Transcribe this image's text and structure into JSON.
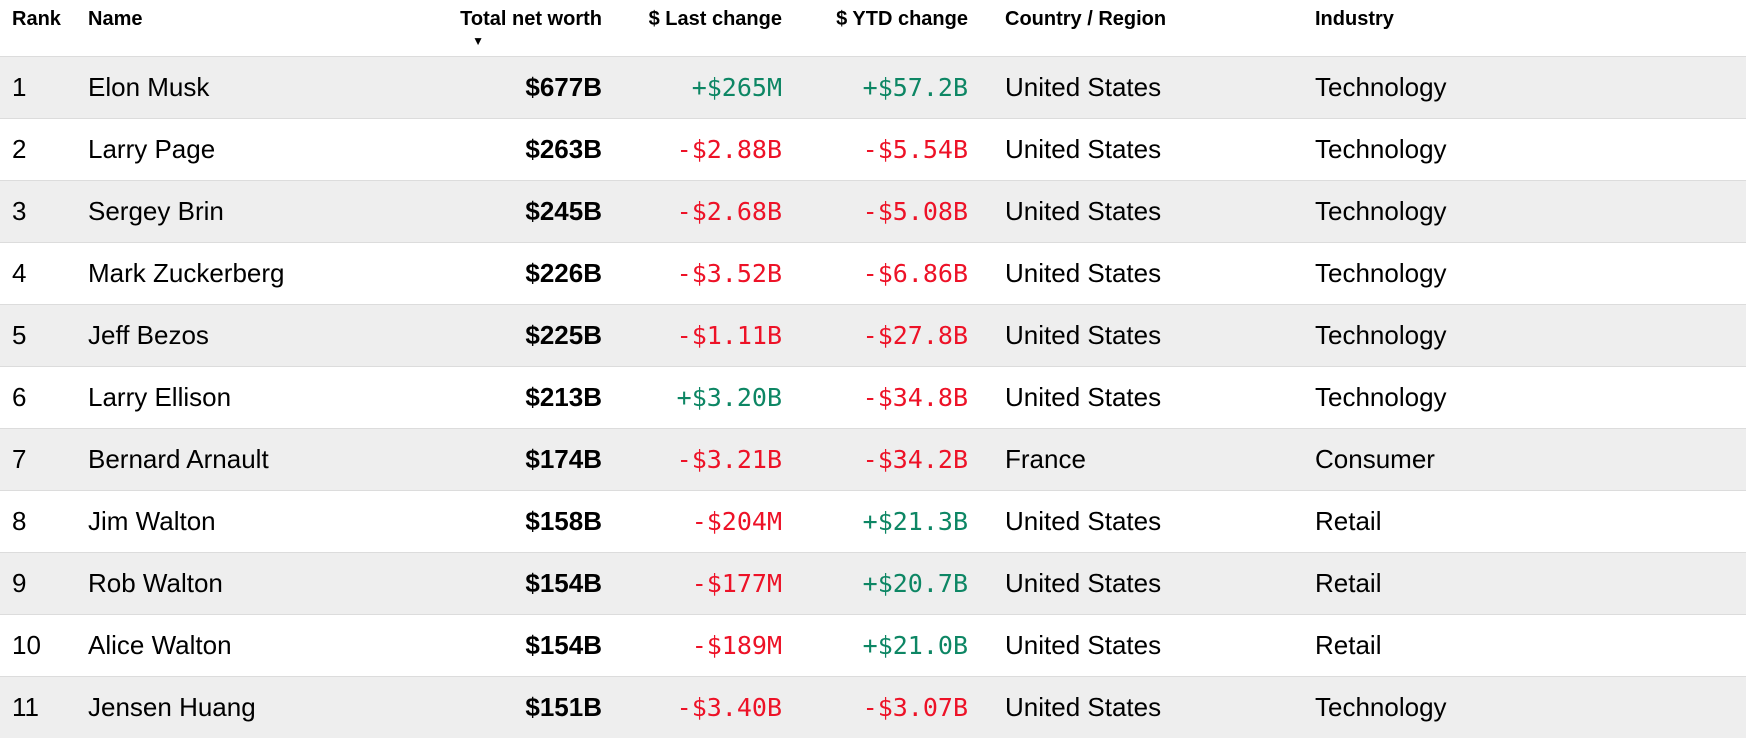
{
  "table": {
    "headers": {
      "rank": "Rank",
      "name": "Name",
      "net_worth": "Total net worth",
      "last_change": "$ Last change",
      "ytd_change": "$ YTD change",
      "country": "Country / Region",
      "industry": "Industry"
    },
    "sort": {
      "column": "Total net worth",
      "direction": "descending",
      "icon": "▼"
    },
    "colors": {
      "positive": "#0d8664",
      "negative": "#ed1227",
      "row_stripe": "#eeeeee",
      "row_separator": "#dcdcdc"
    },
    "rows": [
      {
        "rank": "1",
        "name": "Elon Musk",
        "net_worth": "$677B",
        "last_change": "+$265M",
        "ytd_change": "+$57.2B",
        "country": "United States",
        "industry": "Technology"
      },
      {
        "rank": "2",
        "name": "Larry Page",
        "net_worth": "$263B",
        "last_change": "-$2.88B",
        "ytd_change": "-$5.54B",
        "country": "United States",
        "industry": "Technology"
      },
      {
        "rank": "3",
        "name": "Sergey Brin",
        "net_worth": "$245B",
        "last_change": "-$2.68B",
        "ytd_change": "-$5.08B",
        "country": "United States",
        "industry": "Technology"
      },
      {
        "rank": "4",
        "name": "Mark Zuckerberg",
        "net_worth": "$226B",
        "last_change": "-$3.52B",
        "ytd_change": "-$6.86B",
        "country": "United States",
        "industry": "Technology"
      },
      {
        "rank": "5",
        "name": "Jeff Bezos",
        "net_worth": "$225B",
        "last_change": "-$1.11B",
        "ytd_change": "-$27.8B",
        "country": "United States",
        "industry": "Technology"
      },
      {
        "rank": "6",
        "name": "Larry Ellison",
        "net_worth": "$213B",
        "last_change": "+$3.20B",
        "ytd_change": "-$34.8B",
        "country": "United States",
        "industry": "Technology"
      },
      {
        "rank": "7",
        "name": "Bernard Arnault",
        "net_worth": "$174B",
        "last_change": "-$3.21B",
        "ytd_change": "-$34.2B",
        "country": "France",
        "industry": "Consumer"
      },
      {
        "rank": "8",
        "name": "Jim Walton",
        "net_worth": "$158B",
        "last_change": "-$204M",
        "ytd_change": "+$21.3B",
        "country": "United States",
        "industry": "Retail"
      },
      {
        "rank": "9",
        "name": "Rob Walton",
        "net_worth": "$154B",
        "last_change": "-$177M",
        "ytd_change": "+$20.7B",
        "country": "United States",
        "industry": "Retail"
      },
      {
        "rank": "10",
        "name": "Alice Walton",
        "net_worth": "$154B",
        "last_change": "-$189M",
        "ytd_change": "+$21.0B",
        "country": "United States",
        "industry": "Retail"
      },
      {
        "rank": "11",
        "name": "Jensen Huang",
        "net_worth": "$151B",
        "last_change": "-$3.40B",
        "ytd_change": "-$3.07B",
        "country": "United States",
        "industry": "Technology"
      }
    ]
  }
}
